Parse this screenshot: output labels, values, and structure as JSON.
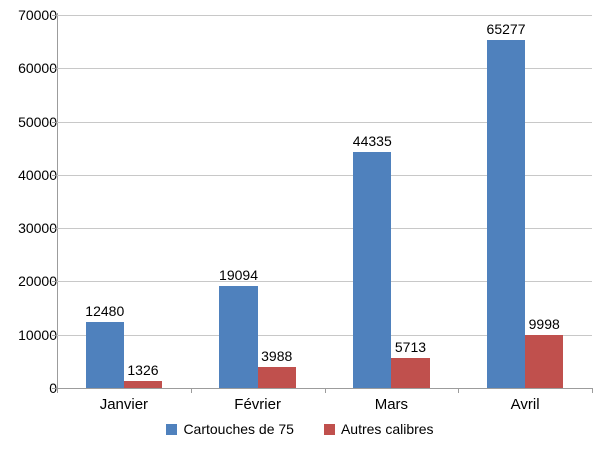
{
  "chart_data": {
    "type": "bar",
    "title": "",
    "xlabel": "",
    "ylabel": "",
    "categories": [
      "Janvier",
      "Février",
      "Mars",
      "Avril"
    ],
    "series": [
      {
        "name": "Cartouches de 75",
        "color": "#4F81BD",
        "values": [
          12480,
          19094,
          44335,
          65277
        ]
      },
      {
        "name": "Autres calibres",
        "color": "#C0504D",
        "values": [
          1326,
          3988,
          5713,
          9998
        ]
      }
    ],
    "ylim": [
      0,
      70000
    ],
    "yticks": [
      0,
      10000,
      20000,
      30000,
      40000,
      50000,
      60000,
      70000
    ],
    "grid": true,
    "data_labels": true,
    "legend_position": "bottom"
  },
  "colors": {
    "background": "#ffffff",
    "gridline": "#c8c8c8",
    "axis": "#9c9c9c",
    "text": "#000000",
    "series_blue": "#4F81BD",
    "series_red": "#C0504D"
  }
}
